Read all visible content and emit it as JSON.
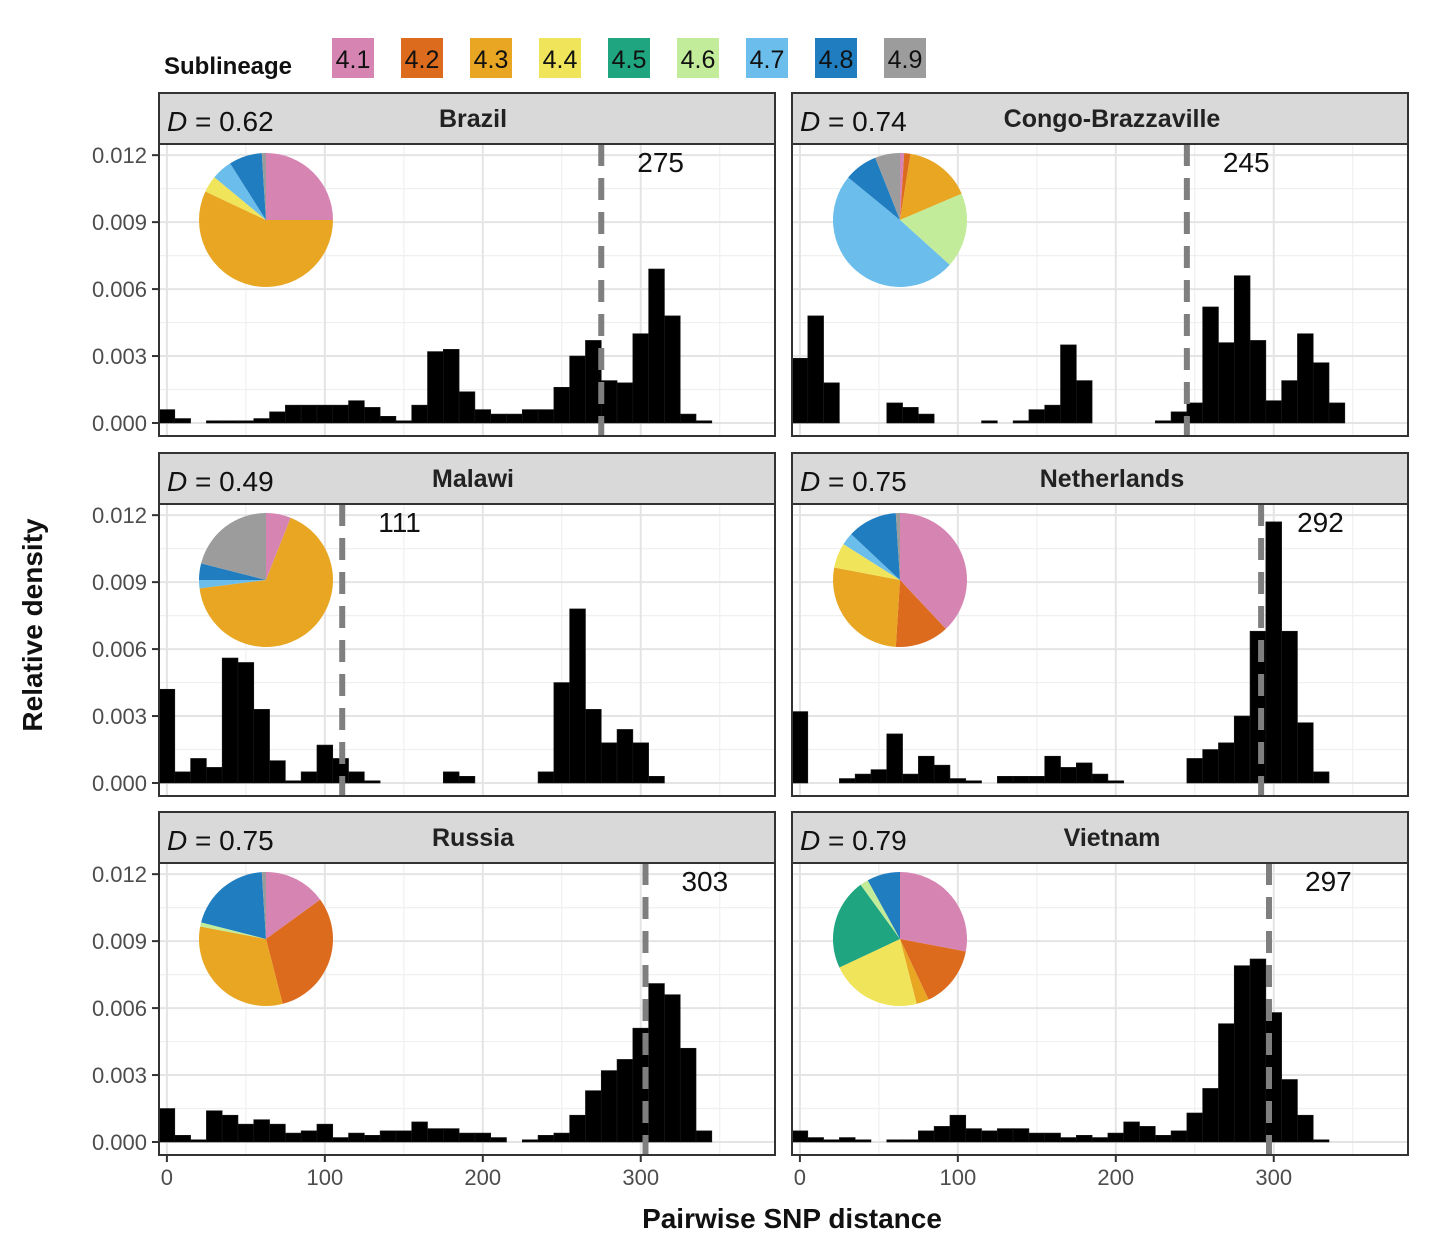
{
  "legend": {
    "title": "Sublineage",
    "items": [
      {
        "label": "4.1",
        "color": "#D685B3"
      },
      {
        "label": "4.2",
        "color": "#DC6B1E"
      },
      {
        "label": "4.3",
        "color": "#E8A623"
      },
      {
        "label": "4.4",
        "color": "#F0E45A"
      },
      {
        "label": "4.5",
        "color": "#1FA57F"
      },
      {
        "label": "4.6",
        "color": "#C3EC9A"
      },
      {
        "label": "4.7",
        "color": "#6BBDEB"
      },
      {
        "label": "4.8",
        "color": "#1F7DC0"
      },
      {
        "label": "4.9",
        "color": "#9C9C9C"
      }
    ]
  },
  "axes": {
    "ylabel": "Relative density",
    "xlabel": "Pairwise SNP distance",
    "d_prefix": "D",
    "d_eq": " = "
  },
  "chart_data": {
    "type": "bar",
    "subtype": "faceted histogram with pie insets",
    "title": "",
    "xlabel": "Pairwise SNP distance",
    "ylabel": "Relative density",
    "xlim": [
      -5,
      385
    ],
    "ylim": [
      0,
      0.012
    ],
    "bin_width": 10,
    "bin_starts": [
      -5,
      5,
      15,
      25,
      35,
      45,
      55,
      65,
      75,
      85,
      95,
      105,
      115,
      125,
      135,
      145,
      155,
      165,
      175,
      185,
      195,
      205,
      215,
      225,
      235,
      245,
      255,
      265,
      275,
      285,
      295,
      305,
      315,
      325,
      335,
      345,
      355
    ],
    "x_ticks": [
      0,
      100,
      200,
      300
    ],
    "x_tick_labels": [
      "0",
      "100",
      "200",
      "300"
    ],
    "y_ticks": [
      0,
      0.003,
      0.006,
      0.009,
      0.012
    ],
    "y_tick_labels": [
      "0.000",
      "0.003",
      "0.006",
      "0.009",
      "0.012"
    ],
    "panels": [
      {
        "country": "Brazil",
        "D": "0.62",
        "median": 275,
        "median_label": "275",
        "values": [
          0.0006,
          0.0002,
          0,
          0.0001,
          0.0001,
          0.0001,
          0.0002,
          0.0005,
          0.0008,
          0.0008,
          0.0008,
          0.0008,
          0.001,
          0.0007,
          0.0003,
          0.0001,
          0.0008,
          0.0032,
          0.0033,
          0.0014,
          0.0006,
          0.0004,
          0.0004,
          0.0006,
          0.0006,
          0.0016,
          0.003,
          0.0037,
          0.0019,
          0.0018,
          0.004,
          0.0069,
          0.0048,
          0.0004,
          0.0001,
          0,
          0
        ],
        "pie": [
          {
            "label": "4.1",
            "value": 25
          },
          {
            "label": "4.2",
            "value": 0
          },
          {
            "label": "4.3",
            "value": 57
          },
          {
            "label": "4.4",
            "value": 4
          },
          {
            "label": "4.5",
            "value": 0
          },
          {
            "label": "4.6",
            "value": 0
          },
          {
            "label": "4.7",
            "value": 5
          },
          {
            "label": "4.8",
            "value": 8
          },
          {
            "label": "4.9",
            "value": 1
          }
        ]
      },
      {
        "country": "Congo-Brazzaville",
        "D": "0.74",
        "median": 245,
        "median_label": "245",
        "values": [
          0.0029,
          0.0048,
          0.0018,
          0,
          0,
          0,
          0.0009,
          0.0007,
          0.0004,
          0,
          0,
          0,
          0.0001,
          0,
          0.0001,
          0.0006,
          0.0008,
          0.0035,
          0.0019,
          0,
          0,
          0,
          0,
          0.0001,
          0.0005,
          0.0009,
          0.0052,
          0.0036,
          0.0066,
          0.0037,
          0.001,
          0.0019,
          0.004,
          0.0027,
          0.0009,
          0,
          0
        ],
        "pie": [
          {
            "label": "4.1",
            "value": 1
          },
          {
            "label": "4.2",
            "value": 1.5
          },
          {
            "label": "4.3",
            "value": 16
          },
          {
            "label": "4.4",
            "value": 0
          },
          {
            "label": "4.5",
            "value": 0
          },
          {
            "label": "4.6",
            "value": 18
          },
          {
            "label": "4.7",
            "value": 49
          },
          {
            "label": "4.8",
            "value": 8
          },
          {
            "label": "4.9",
            "value": 6
          }
        ]
      },
      {
        "country": "Malawi",
        "D": "0.49",
        "median": 111,
        "median_label": "111",
        "values": [
          0.0042,
          0.0005,
          0.0011,
          0.0007,
          0.0056,
          0.0054,
          0.0033,
          0.001,
          0.0001,
          0.0005,
          0.0017,
          0.0011,
          0.0005,
          0.0001,
          0,
          0,
          0,
          0,
          0.0005,
          0.0003,
          0,
          0,
          0,
          0,
          0.0005,
          0.0045,
          0.0078,
          0.0033,
          0.0018,
          0.0024,
          0.0018,
          0.0003,
          0,
          0,
          0,
          0,
          0
        ],
        "pie": [
          {
            "label": "4.1",
            "value": 6
          },
          {
            "label": "4.2",
            "value": 0
          },
          {
            "label": "4.3",
            "value": 67
          },
          {
            "label": "4.4",
            "value": 0
          },
          {
            "label": "4.5",
            "value": 0
          },
          {
            "label": "4.6",
            "value": 0
          },
          {
            "label": "4.7",
            "value": 2
          },
          {
            "label": "4.8",
            "value": 4
          },
          {
            "label": "4.9",
            "value": 21
          }
        ]
      },
      {
        "country": "Netherlands",
        "D": "0.75",
        "median": 292,
        "median_label": "292",
        "values": [
          0.0032,
          0,
          0,
          0.0002,
          0.0004,
          0.0006,
          0.0022,
          0.0004,
          0.0012,
          0.0008,
          0.0002,
          0.0001,
          0,
          0.0003,
          0.0003,
          0.0003,
          0.0012,
          0.0007,
          0.0009,
          0.0004,
          0.0001,
          0,
          0,
          0,
          0,
          0.0011,
          0.0015,
          0.0018,
          0.003,
          0.0068,
          0.0117,
          0.0068,
          0.0027,
          0.0005,
          0,
          0,
          0
        ],
        "pie": [
          {
            "label": "4.1",
            "value": 38
          },
          {
            "label": "4.2",
            "value": 13
          },
          {
            "label": "4.3",
            "value": 27
          },
          {
            "label": "4.4",
            "value": 6
          },
          {
            "label": "4.5",
            "value": 0
          },
          {
            "label": "4.6",
            "value": 0
          },
          {
            "label": "4.7",
            "value": 3
          },
          {
            "label": "4.8",
            "value": 12
          },
          {
            "label": "4.9",
            "value": 1
          }
        ]
      },
      {
        "country": "Russia",
        "D": "0.75",
        "median": 303,
        "median_label": "303",
        "values": [
          0.0015,
          0.0003,
          0.0001,
          0.0014,
          0.0012,
          0.0008,
          0.001,
          0.0008,
          0.0004,
          0.0005,
          0.0008,
          0.0002,
          0.0004,
          0.0003,
          0.0005,
          0.0005,
          0.0009,
          0.0006,
          0.0006,
          0.0004,
          0.0004,
          0.0002,
          0,
          0.0001,
          0.0003,
          0.0004,
          0.0012,
          0.0023,
          0.0032,
          0.0037,
          0.0051,
          0.0071,
          0.0066,
          0.0042,
          0.0005,
          0,
          0
        ],
        "pie": [
          {
            "label": "4.1",
            "value": 15
          },
          {
            "label": "4.2",
            "value": 31
          },
          {
            "label": "4.3",
            "value": 32
          },
          {
            "label": "4.4",
            "value": 0
          },
          {
            "label": "4.5",
            "value": 0
          },
          {
            "label": "4.6",
            "value": 1
          },
          {
            "label": "4.7",
            "value": 0
          },
          {
            "label": "4.8",
            "value": 20
          },
          {
            "label": "4.9",
            "value": 1
          }
        ]
      },
      {
        "country": "Vietnam",
        "D": "0.79",
        "median": 297,
        "median_label": "297",
        "values": [
          0.0005,
          0.0002,
          0.0001,
          0.0002,
          0.0001,
          0,
          0.0001,
          0.0001,
          0.0005,
          0.0007,
          0.0012,
          0.0006,
          0.0005,
          0.0006,
          0.0006,
          0.0004,
          0.0004,
          0.0002,
          0.0003,
          0.0002,
          0.0004,
          0.0009,
          0.0007,
          0.0003,
          0.0005,
          0.0013,
          0.0024,
          0.0053,
          0.0079,
          0.0082,
          0.0058,
          0.0028,
          0.0012,
          0.0001,
          0,
          0,
          0
        ],
        "pie": [
          {
            "label": "4.1",
            "value": 28
          },
          {
            "label": "4.2",
            "value": 15
          },
          {
            "label": "4.3",
            "value": 3
          },
          {
            "label": "4.4",
            "value": 22
          },
          {
            "label": "4.5",
            "value": 22
          },
          {
            "label": "4.6",
            "value": 2
          },
          {
            "label": "4.7",
            "value": 0
          },
          {
            "label": "4.8",
            "value": 8
          },
          {
            "label": "4.9",
            "value": 0
          }
        ]
      }
    ]
  }
}
